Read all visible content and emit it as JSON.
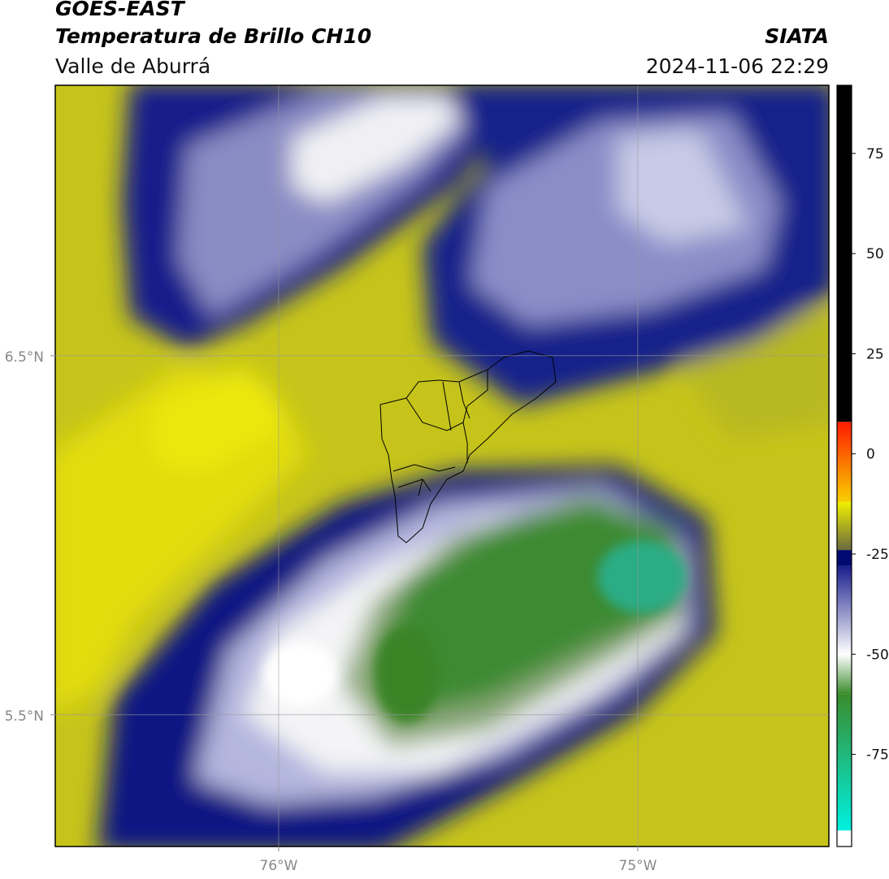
{
  "header": {
    "title": "GOES-EAST",
    "subtitle": "Temperatura de Brillo CH10",
    "region": "Valle de Aburrá",
    "source": "SIATA",
    "datetime": "2024-11-06 22:29"
  },
  "map": {
    "xlim": [
      -76.622,
      -74.468
    ],
    "ylim": [
      5.133,
      7.253
    ],
    "xticks": [
      {
        "value": -76,
        "label": "76°W"
      },
      {
        "value": -75,
        "label": "75°W"
      }
    ],
    "yticks": [
      {
        "value": 6.5,
        "label": "6.5°N"
      },
      {
        "value": 5.5,
        "label": "5.5°N"
      }
    ],
    "grid": true
  },
  "colorbar": {
    "vlim": [
      -98,
      92
    ],
    "ticks": [
      75,
      50,
      25,
      0,
      -25,
      -50,
      -75
    ],
    "bands": [
      {
        "from": -98,
        "to": -94,
        "colors": [
          "#ffffff",
          "#ffffff"
        ]
      },
      {
        "from": -94,
        "to": -60,
        "colors": [
          "#00f0e0",
          "#3a8c2c"
        ]
      },
      {
        "from": -60,
        "to": -50,
        "colors": [
          "#3a8c2c",
          "#ffffff"
        ]
      },
      {
        "from": -50,
        "to": -28,
        "colors": [
          "#ffffff",
          "#1a1e8c"
        ]
      },
      {
        "from": -28,
        "to": -24,
        "colors": [
          "#000a70",
          "#000a70"
        ]
      },
      {
        "from": -24,
        "to": -12,
        "colors": [
          "#6a6a40",
          "#f0f000"
        ]
      },
      {
        "from": -12,
        "to": 8,
        "colors": [
          "#f8d000",
          "#ff1a00"
        ]
      },
      {
        "from": 8,
        "to": 92,
        "colors": [
          "#000000",
          "#000000"
        ]
      }
    ]
  }
}
